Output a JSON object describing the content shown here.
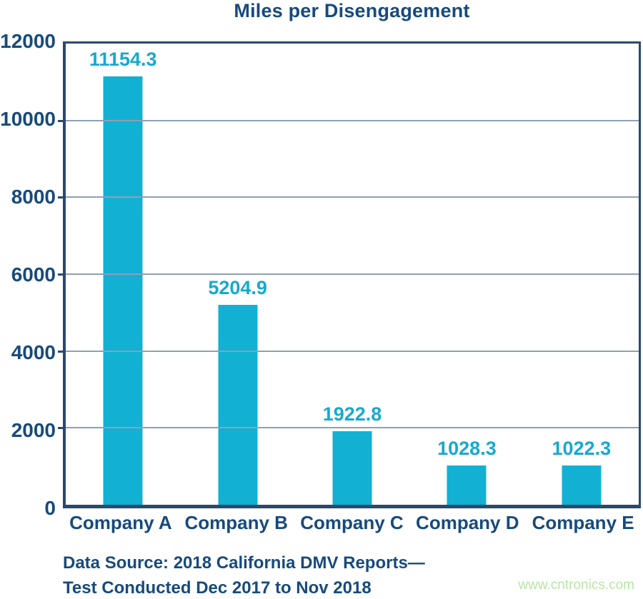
{
  "title": "Miles per Disengagement",
  "footer": {
    "line1": "Data Source: 2018 California DMV Reports—",
    "line2": "Test Conducted Dec 2017 to Nov 2018"
  },
  "watermark": "www.cntronics.com",
  "colors": {
    "navy": "#174a7c",
    "border": "#2a4a6b",
    "gridline": "#8fa0b4",
    "bar_cyan": "#12b1d3",
    "value_label_cyan": "#16a9cf",
    "watermark_green": "#b9e4a6"
  },
  "chart_data": {
    "type": "bar",
    "title": "Miles per Disengagement",
    "categories": [
      "Company A",
      "Company B",
      "Company C",
      "Company D",
      "Company E"
    ],
    "values": [
      11154.3,
      5204.9,
      1922.8,
      1028.3,
      1022.3
    ],
    "value_labels": [
      "11154.3",
      "5204.9",
      "1922.8",
      "1028.3",
      "1022.3"
    ],
    "xlabel": "",
    "ylabel": "",
    "ylim": [
      0,
      12000
    ],
    "yticks": [
      0,
      2000,
      4000,
      6000,
      8000,
      10000,
      12000
    ],
    "grid": true,
    "legend_position": "none"
  }
}
